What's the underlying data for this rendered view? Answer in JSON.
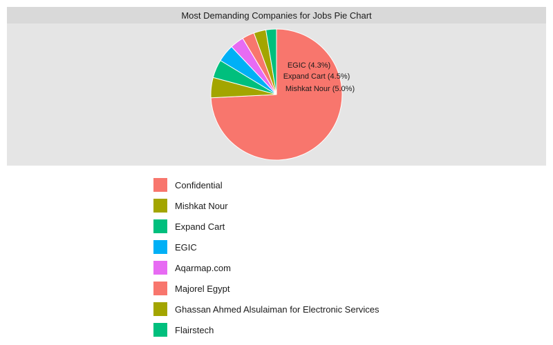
{
  "chart_data": {
    "type": "pie",
    "title": "Most Demanding Companies for Jobs Pie Chart",
    "slices": [
      {
        "name": "Confidential",
        "percent": 74.2,
        "color": "#F8766D"
      },
      {
        "name": "Mishkat Nour",
        "percent": 5.0,
        "color": "#A3A500",
        "label": "Mishkat Nour (5.0%)"
      },
      {
        "name": "Expand Cart",
        "percent": 4.5,
        "color": "#00BF7D",
        "label": "Expand Cart (4.5%)"
      },
      {
        "name": "EGIC",
        "percent": 4.3,
        "color": "#00B0F6",
        "label": "EGIC (4.3%)"
      },
      {
        "name": "Aqarmap.com",
        "percent": 3.4,
        "color": "#E76BF3"
      },
      {
        "name": "Majorel Egypt",
        "percent": 3.0,
        "color": "#F8766D"
      },
      {
        "name": "Ghassan Ahmed Alsulaiman for Electronic Services",
        "percent": 3.0,
        "color": "#A3A500"
      },
      {
        "name": "Flairstech",
        "percent": 2.6,
        "color": "#00BF7D"
      }
    ],
    "legend_position": "bottom",
    "panel_background": "#E5E5E5",
    "strip_background": "#D9D9D9"
  }
}
